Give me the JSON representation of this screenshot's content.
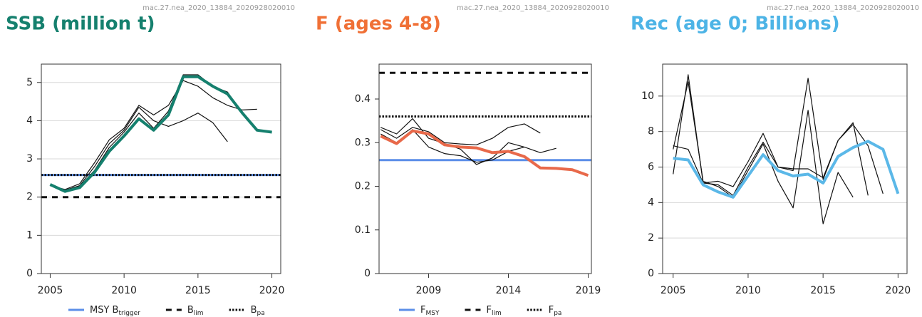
{
  "chart_data": [
    {
      "type": "line",
      "title": "SSB (million t)",
      "title_color": "#15806e",
      "source": "mac.27.nea_2020_13884_2020928020010",
      "x": [
        2005,
        2006,
        2007,
        2008,
        2009,
        2010,
        2011,
        2012,
        2013,
        2014,
        2015,
        2016,
        2017,
        2018,
        2019,
        2020
      ],
      "xlim": [
        2004.4,
        2020.6
      ],
      "xticks": [
        2005,
        2010,
        2015,
        2020
      ],
      "ylim": [
        0,
        5.48
      ],
      "yticks": [
        0,
        1,
        2,
        3,
        4,
        5
      ],
      "grid": true,
      "series": [
        {
          "color": "#111111",
          "values": [
            2.3,
            2.2,
            2.35,
            2.9,
            3.5,
            3.8,
            4.4,
            4.15,
            4.4,
            5.05,
            4.9,
            4.6,
            4.4,
            4.28,
            4.3,
            null
          ]
        },
        {
          "color": "#111111",
          "values": [
            2.3,
            2.18,
            2.3,
            2.8,
            3.4,
            3.75,
            4.35,
            4.0,
            3.85,
            4.0,
            4.2,
            3.95,
            3.45,
            null,
            null,
            null
          ]
        },
        {
          "color": "#111111",
          "values": [
            2.32,
            2.17,
            2.28,
            2.7,
            3.3,
            3.7,
            4.2,
            3.8,
            4.25,
            5.2,
            5.2,
            4.9,
            4.75,
            4.2,
            null,
            null
          ]
        },
        {
          "color": "#15806e",
          "width": 4,
          "values": [
            2.33,
            2.15,
            2.25,
            2.65,
            3.2,
            3.6,
            4.05,
            3.75,
            4.15,
            5.15,
            5.15,
            4.9,
            4.7,
            4.2,
            3.75,
            3.7
          ]
        }
      ],
      "reference_lines": [
        {
          "name": "MSY B",
          "subscript": "trigger",
          "value": 2.58,
          "color": "#5b8ee8",
          "style": "solid"
        },
        {
          "name": "B",
          "subscript": "lim",
          "value": 2.0,
          "color": "#111111",
          "style": "dashed"
        },
        {
          "name": "B",
          "subscript": "pa",
          "value": 2.58,
          "color": "#111111",
          "style": "dotted"
        }
      ]
    },
    {
      "type": "line",
      "title": "F (ages 4-8)",
      "title_color": "#f07036",
      "source": "mac.27.nea_2020_13884_2020928020010",
      "x": [
        2006,
        2007,
        2008,
        2009,
        2010,
        2011,
        2012,
        2013,
        2014,
        2015,
        2016,
        2017,
        2018,
        2019
      ],
      "xlim": [
        2005.9,
        2019.2
      ],
      "xticks": [
        2009,
        2014,
        2019
      ],
      "ylim": [
        0,
        0.48
      ],
      "yticks": [
        0,
        0.1,
        0.2,
        0.3,
        0.4
      ],
      "grid": false,
      "series": [
        {
          "color": "#111111",
          "values": [
            0.33,
            0.31,
            0.335,
            0.325,
            0.3,
            0.297,
            0.295,
            0.31,
            0.335,
            0.343,
            0.322,
            null,
            null,
            null
          ]
        },
        {
          "color": "#111111",
          "values": [
            0.32,
            0.3,
            0.33,
            0.29,
            0.275,
            0.27,
            0.255,
            0.26,
            0.28,
            0.29,
            0.277,
            0.287,
            null,
            null
          ]
        },
        {
          "color": "#111111",
          "values": [
            0.335,
            0.32,
            0.355,
            0.31,
            0.298,
            0.285,
            0.25,
            0.265,
            0.3,
            0.29,
            null,
            null,
            null,
            null
          ]
        },
        {
          "color": "#e8694a",
          "width": 4,
          "values": [
            0.315,
            0.298,
            0.327,
            0.32,
            0.295,
            0.29,
            0.288,
            0.277,
            0.28,
            0.268,
            0.242,
            0.241,
            0.238,
            0.225
          ]
        }
      ],
      "reference_lines": [
        {
          "name": "F",
          "subscript": "MSY",
          "value": 0.26,
          "color": "#5b8ee8",
          "style": "solid"
        },
        {
          "name": "F",
          "subscript": "lim",
          "value": 0.46,
          "color": "#111111",
          "style": "dashed"
        },
        {
          "name": "F",
          "subscript": "pa",
          "value": 0.36,
          "color": "#111111",
          "style": "dotted"
        }
      ]
    },
    {
      "type": "line",
      "title": "Rec (age 0; Billions)",
      "title_color": "#4db4e6",
      "source": "mac.27.nea_2020_13884_2020928020010",
      "x": [
        2005,
        2006,
        2007,
        2008,
        2009,
        2010,
        2011,
        2012,
        2013,
        2014,
        2015,
        2016,
        2017,
        2018,
        2019,
        2020
      ],
      "xlim": [
        2004.3,
        2020.6
      ],
      "xticks": [
        2005,
        2010,
        2015,
        2020
      ],
      "ylim": [
        0,
        11.8
      ],
      "yticks": [
        0,
        2,
        4,
        6,
        8,
        10
      ],
      "grid": true,
      "series": [
        {
          "color": "#111111",
          "values": [
            5.6,
            11.2,
            5.1,
            5.2,
            4.9,
            6.3,
            7.9,
            6.0,
            5.9,
            5.9,
            5.4,
            7.5,
            8.4,
            7.2,
            4.5,
            null
          ]
        },
        {
          "color": "#111111",
          "values": [
            7.2,
            7.0,
            5.1,
            5.0,
            4.4,
            6.0,
            7.4,
            6.0,
            5.8,
            11.0,
            5.3,
            7.5,
            8.5,
            4.4,
            null,
            null
          ]
        },
        {
          "color": "#111111",
          "values": [
            7.0,
            10.8,
            5.2,
            4.9,
            4.3,
            5.8,
            7.3,
            5.2,
            3.7,
            9.2,
            2.8,
            5.7,
            4.3,
            null,
            null,
            null
          ]
        },
        {
          "color": "#5bb8e8",
          "width": 4,
          "values": [
            6.5,
            6.4,
            5.0,
            4.6,
            4.3,
            5.5,
            6.7,
            5.8,
            5.5,
            5.6,
            5.1,
            6.6,
            7.1,
            7.45,
            7.0,
            4.5
          ]
        }
      ],
      "reference_lines": []
    }
  ]
}
